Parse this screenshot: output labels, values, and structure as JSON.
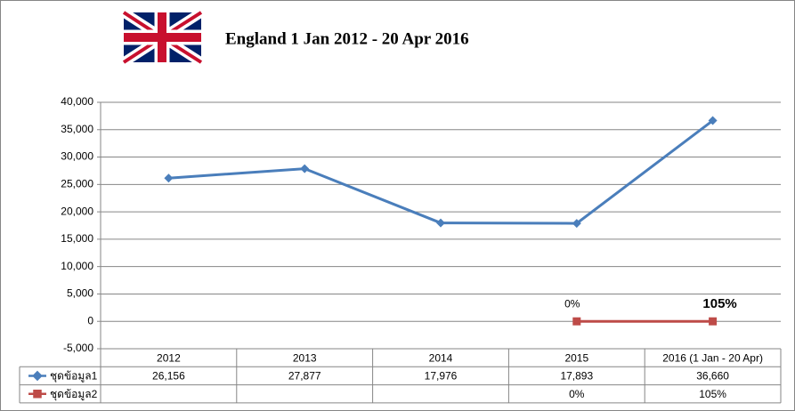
{
  "chart_data": {
    "type": "line",
    "title": "England   1 Jan 2012 - 20 Apr 2016",
    "categories": [
      "2012",
      "2013",
      "2014",
      "2015",
      "2016 (1 Jan - 20 Apr)"
    ],
    "series": [
      {
        "name": "ชุดข้อมูล1",
        "color": "#4a7ebb",
        "values": [
          26156,
          27877,
          17976,
          17893,
          36660
        ],
        "value_labels": [
          "26,156",
          "27,877",
          "17,976",
          "17,893",
          "36,660"
        ]
      },
      {
        "name": "ชุดข้อมูล2",
        "color": "#be4b48",
        "values": [
          null,
          null,
          null,
          0,
          1.05
        ],
        "value_labels": [
          null,
          null,
          null,
          "0%",
          "105%"
        ]
      }
    ],
    "ylim": [
      -5000,
      40000
    ],
    "yticks": [
      {
        "value": -5000,
        "label": "-5,000"
      },
      0,
      {
        "value": 5000,
        "label": "5,000"
      },
      {
        "value": 10000,
        "label": "10,000"
      },
      {
        "value": 15000,
        "label": "15,000"
      },
      {
        "value": 20000,
        "label": "20,000"
      },
      {
        "value": 25000,
        "label": "25,000"
      },
      {
        "value": 30000,
        "label": "30,000"
      },
      {
        "value": 35000,
        "label": "35,000"
      },
      {
        "value": 40000,
        "label": "40,000"
      }
    ],
    "grid": true
  }
}
